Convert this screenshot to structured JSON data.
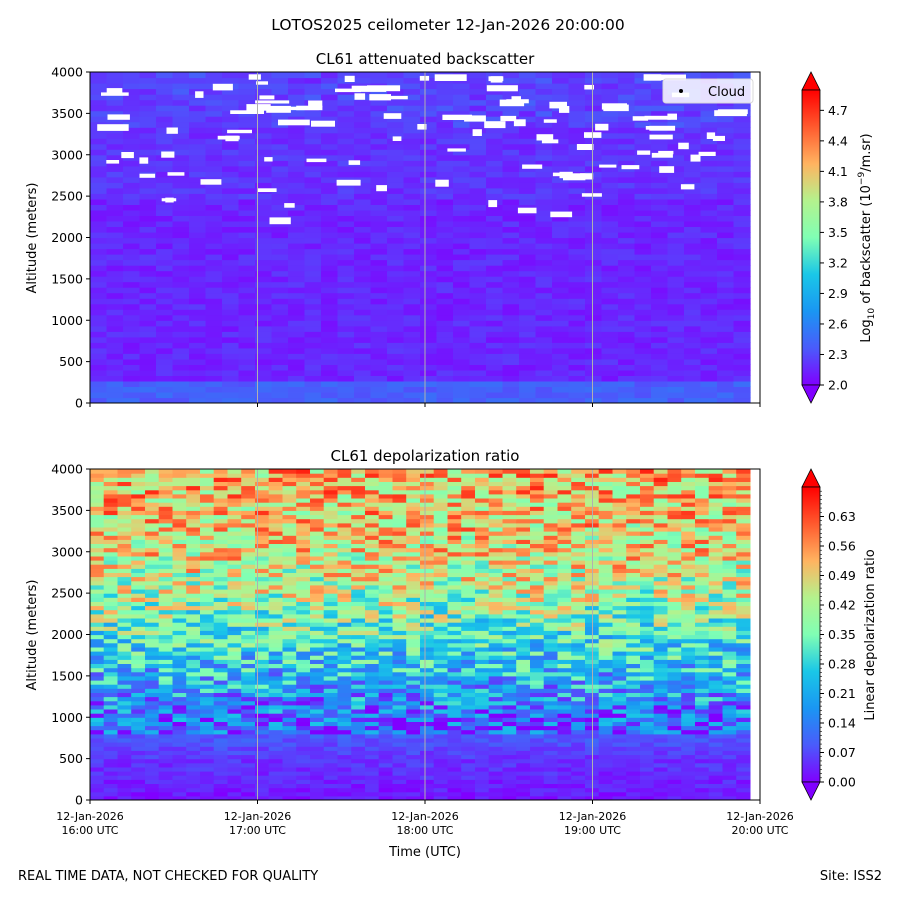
{
  "title": "LOTOS2025 ceilometer 12-Jan-2026 20:00:00",
  "footer_left": "REAL TIME DATA, NOT CHECKED FOR QUALITY",
  "footer_right": "Site: ISS2",
  "colors": {
    "grid": "#b0b0b0",
    "cloud_marker": "#ffffff"
  },
  "chart_data": [
    {
      "type": "heatmap",
      "title": "CL61 attenuated backscatter",
      "ylabel": "Altitude (meters)",
      "ylim": [
        0,
        4000
      ],
      "yticks": [
        0,
        500,
        1000,
        1500,
        2000,
        2500,
        3000,
        3500,
        4000
      ],
      "xlim_hours_utc": [
        16,
        20
      ],
      "xticks": [
        16,
        17,
        18,
        19,
        20
      ],
      "xtick_labels": [],
      "grid": "x-only",
      "legend": {
        "entries": [
          "Cloud"
        ],
        "placement": "top-right"
      },
      "colorbar": {
        "label_pre": "Log",
        "label_sub": "10",
        "label_mid": " of backscatter (10",
        "label_sup": "−9",
        "label_post": "/m.sr)",
        "range": [
          2.0,
          4.9
        ],
        "ticks": [
          "2.0",
          "2.3",
          "2.6",
          "2.9",
          "3.2",
          "3.5",
          "3.8",
          "4.1",
          "4.4",
          "4.7"
        ],
        "tick_values": [
          2.0,
          2.3,
          2.6,
          2.9,
          3.2,
          3.5,
          3.8,
          4.1,
          4.4,
          4.7
        ],
        "colormap": "rainbow",
        "extend": "both"
      },
      "typical_levels": {
        "near_surface_0_300m": 2.4,
        "column_300_2500m": 2.15,
        "upper_2500_4000m": 2.2
      }
    },
    {
      "type": "heatmap",
      "title": "CL61 depolarization ratio",
      "xlabel": "Time (UTC)",
      "ylabel": "Altitude (meters)",
      "ylim": [
        0,
        4000
      ],
      "yticks": [
        0,
        500,
        1000,
        1500,
        2000,
        2500,
        3000,
        3500,
        4000
      ],
      "xlim_hours_utc": [
        16,
        20
      ],
      "xticks": [
        16,
        17,
        18,
        19,
        20
      ],
      "xtick_labels": [
        [
          "12-Jan-2026",
          "16:00 UTC"
        ],
        [
          "12-Jan-2026",
          "17:00 UTC"
        ],
        [
          "12-Jan-2026",
          "18:00 UTC"
        ],
        [
          "12-Jan-2026",
          "19:00 UTC"
        ],
        [
          "12-Jan-2026",
          "20:00 UTC"
        ]
      ],
      "grid": "x-only",
      "colorbar": {
        "label": "Linear depolarization ratio",
        "range": [
          0.0,
          0.7
        ],
        "ticks": [
          "0.00",
          "0.07",
          "0.14",
          "0.21",
          "0.28",
          "0.35",
          "0.42",
          "0.49",
          "0.56",
          "0.63"
        ],
        "tick_values": [
          0.0,
          0.07,
          0.14,
          0.21,
          0.28,
          0.35,
          0.42,
          0.49,
          0.56,
          0.63
        ],
        "colormap": "rainbow",
        "extend": "both"
      },
      "profile_by_altitude": {
        "altitude_m": [
          0,
          500,
          1000,
          1500,
          2000,
          2500,
          3000,
          3500,
          4000
        ],
        "mean_ratio": [
          0.02,
          0.05,
          0.12,
          0.22,
          0.32,
          0.42,
          0.47,
          0.5,
          0.52
        ]
      }
    }
  ]
}
